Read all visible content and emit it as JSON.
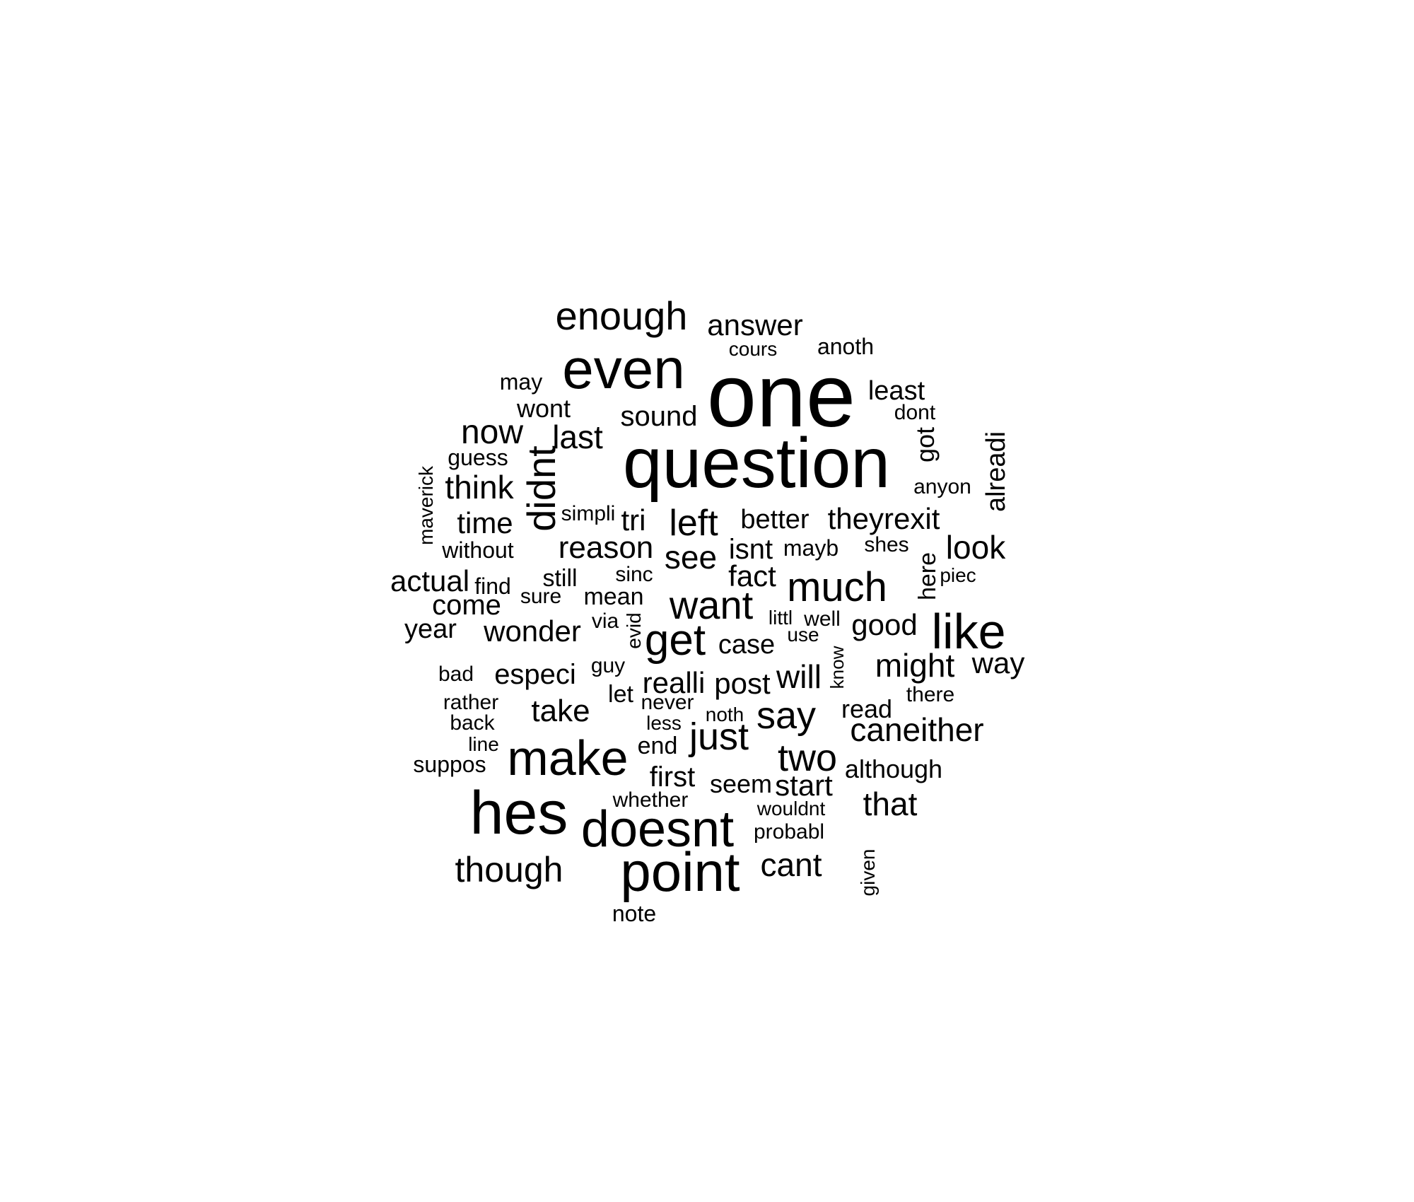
{
  "words": [
    "one",
    "question",
    "even",
    "hes",
    "point",
    "doesnt",
    "make",
    "like",
    "get",
    "enough",
    "much",
    "want",
    "didnt",
    "say",
    "just",
    "two",
    "left",
    "now",
    "though",
    "answer",
    "last",
    "think",
    "caneither",
    "might",
    "see",
    "reason",
    "look",
    "will",
    "sound",
    "time",
    "tri",
    "theyrexit",
    "actual",
    "realli",
    "post",
    "take",
    "wonder",
    "fact",
    "good",
    "way",
    "least",
    "cant",
    "that",
    "start",
    "especi",
    "come",
    "first",
    "better",
    "alreadi",
    "isnt",
    "year",
    "case",
    "read",
    "seem",
    "got",
    "here",
    "mean",
    "wont",
    "end",
    "although",
    "maverick",
    "guess",
    "still",
    "mayb",
    "may",
    "without",
    "suppos",
    "find",
    "sure",
    "sinc",
    "simpli",
    "anoth",
    "cours",
    "dont",
    "anyon",
    "shes",
    "piec",
    "evid",
    "littl",
    "well",
    "use",
    "know",
    "there",
    "rather",
    "bad",
    "back",
    "line",
    "guy",
    "let",
    "never",
    "noth",
    "less",
    "whether",
    "wouldnt",
    "probabl",
    "given",
    "note",
    "via"
  ]
}
